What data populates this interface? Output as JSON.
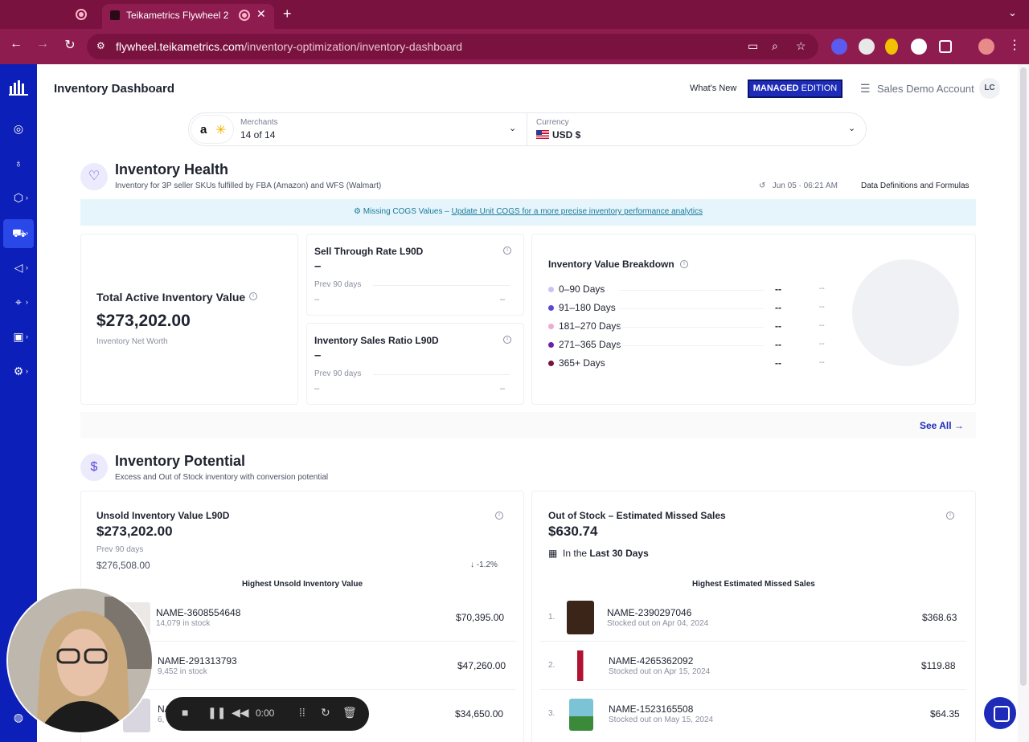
{
  "browser": {
    "tab_title": "Teikametrics Flywheel 2",
    "url_host": "flywheel.teikametrics.com",
    "url_path": "/inventory-optimization/inventory-dashboard"
  },
  "header": {
    "page_title": "Inventory Dashboard",
    "whats_new": "What's New",
    "edition_strong": "MANAGED",
    "edition_rest": " EDITION",
    "account_name": "Sales Demo Account",
    "avatar_initials": "LC"
  },
  "filters": {
    "merchants_label": "Merchants",
    "merchants_value": "14 of 14",
    "currency_label": "Currency",
    "currency_value": "USD $"
  },
  "inventory_health": {
    "title": "Inventory Health",
    "subtitle": "Inventory for 3P seller SKUs fulfilled by FBA (Amazon) and WFS (Walmart)",
    "updated": "Jun 05 · 06:21 AM",
    "data_definitions": "Data Definitions and Formulas",
    "banner_prefix": "⚙ Missing COGS Values – ",
    "banner_link": "Update Unit COGS for a more precise inventory performance analytics",
    "total_label": "Total Active Inventory Value",
    "total_value": "$273,202.00",
    "total_sub": "Inventory Net Worth",
    "sell_through": {
      "title": "Sell Through Rate L90D",
      "value": "–",
      "prev_label": "Prev 90 days",
      "prev_value": "–",
      "change": "–"
    },
    "sales_ratio": {
      "title": "Inventory Sales Ratio L90D",
      "value": "–",
      "prev_label": "Prev 90 days",
      "prev_value": "–",
      "change": "–"
    },
    "breakdown": {
      "title": "Inventory Value Breakdown",
      "rows": [
        {
          "label": "0–90 Days",
          "value": "--",
          "pct": "--",
          "color": "#c9c3f5"
        },
        {
          "label": "91–180 Days",
          "value": "--",
          "pct": "--",
          "color": "#5a49d6"
        },
        {
          "label": "181–270 Days",
          "value": "--",
          "pct": "--",
          "color": "#f0a8d6"
        },
        {
          "label": "271–365 Days",
          "value": "--",
          "pct": "--",
          "color": "#6b21a8"
        },
        {
          "label": "365+ Days",
          "value": "--",
          "pct": "--",
          "color": "#7a1240"
        }
      ]
    },
    "see_all": "See All →"
  },
  "inventory_potential": {
    "title": "Inventory Potential",
    "subtitle": "Excess and Out of Stock inventory with conversion potential",
    "unsold": {
      "title": "Unsold Inventory Value L90D",
      "value": "$273,202.00",
      "prev_label": "Prev 90 days",
      "prev_value": "$276,508.00",
      "change": "↓ -1.2%",
      "list_title": "Highest Unsold Inventory Value",
      "rows": [
        {
          "name": "NAME-3608554648",
          "sub": "14,079 in stock",
          "value": "$70,395.00"
        },
        {
          "name": "NAME-291313793",
          "sub": "9,452 in stock",
          "value": "$47,260.00"
        },
        {
          "name": "NA",
          "sub": "6,",
          "value": "$34,650.00"
        }
      ]
    },
    "oos": {
      "title": "Out of Stock – Estimated Missed Sales",
      "value": "$630.74",
      "period_prefix": "In the ",
      "period_value": "Last 30 Days",
      "list_title": "Highest Estimated Missed Sales",
      "rows": [
        {
          "rank": "1.",
          "name": "NAME-2390297046",
          "sub": "Stocked out on Apr 04, 2024",
          "value": "$368.63"
        },
        {
          "rank": "2.",
          "name": "NAME-4265362092",
          "sub": "Stocked out on Apr 15, 2024",
          "value": "$119.88"
        },
        {
          "rank": "3.",
          "name": "NAME-1523165508",
          "sub": "Stocked out on May 15, 2024",
          "value": "$64.35"
        }
      ]
    }
  },
  "recorder": {
    "time": "0:00"
  }
}
